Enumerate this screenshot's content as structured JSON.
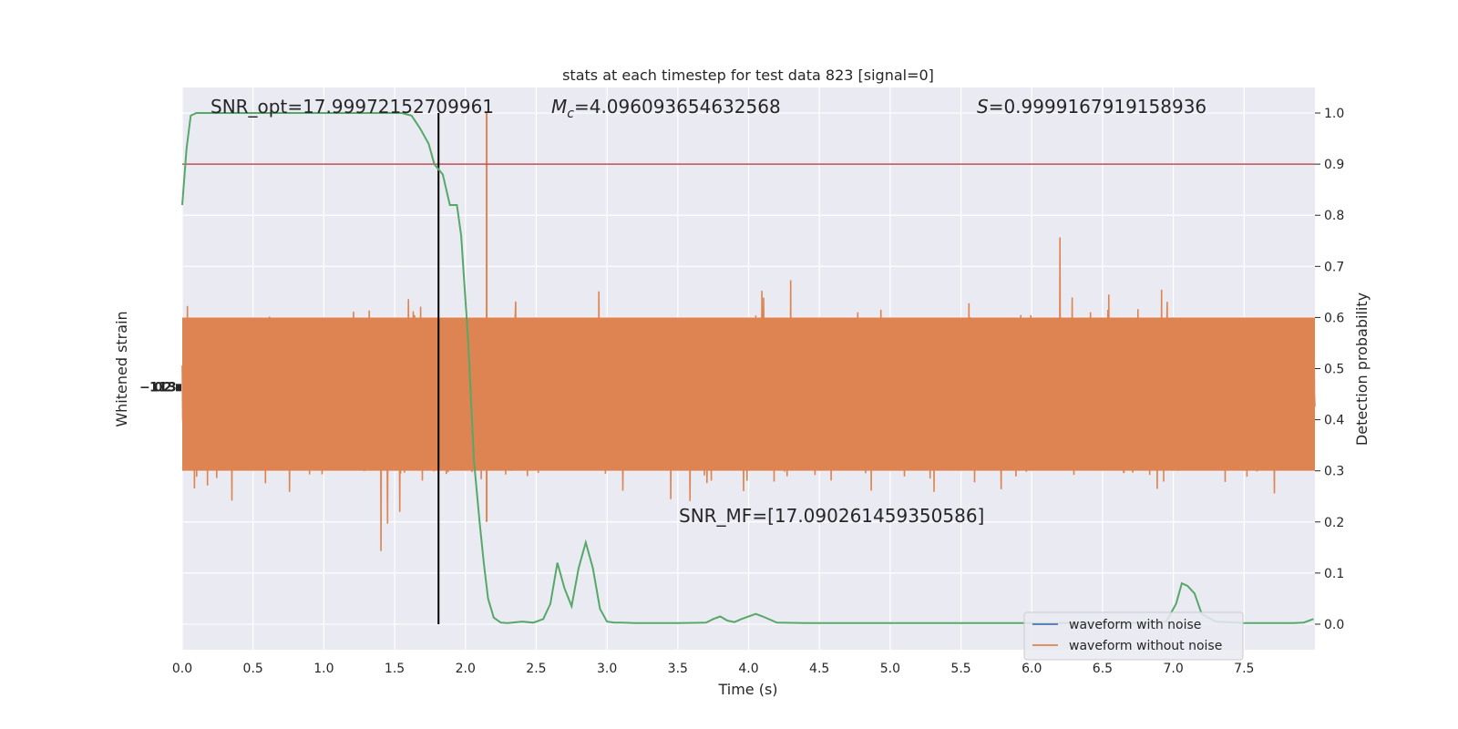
{
  "chart_data": {
    "type": "line",
    "title": "stats at each timestep for test data 823 [signal=0]",
    "xlabel": "Time (s)",
    "ylabel_left": "Whitened strain",
    "ylabel_right": "Detection probability",
    "xlim": [
      0.0,
      8.0
    ],
    "x_ticks": [
      "0.0",
      "0.5",
      "1.0",
      "1.5",
      "2.0",
      "2.5",
      "3.0",
      "3.5",
      "4.0",
      "4.5",
      "5.0",
      "5.5",
      "6.0",
      "6.5",
      "7.0",
      "7.5"
    ],
    "x_tick_values": [
      0.0,
      0.5,
      1.0,
      1.5,
      2.0,
      2.5,
      3.0,
      3.5,
      4.0,
      4.5,
      5.0,
      5.5,
      6.0,
      6.5,
      7.0,
      7.5
    ],
    "ylim_right": [
      -0.05,
      1.05
    ],
    "y_ticks_right": [
      "0.0",
      "0.1",
      "0.2",
      "0.3",
      "0.4",
      "0.5",
      "0.6",
      "0.7",
      "0.8",
      "0.9",
      "1.0"
    ],
    "y_tick_values_right": [
      0.0,
      0.1,
      0.2,
      0.3,
      0.4,
      0.5,
      0.6,
      0.7,
      0.8,
      0.9,
      1.0
    ],
    "grid": true,
    "legend_position": "lower-right",
    "annotations": {
      "snr_opt": "SNR_opt=17.99972152709961",
      "mc_symbol": "M",
      "mc_sub": "c",
      "mc_value": "=4.096093654632568",
      "s_symbol": "S",
      "s_value": "=0.9999167919158936",
      "snr_mf": "SNR_MF=[17.090261459350586]"
    },
    "threshold": 0.9,
    "event_time": 1.81,
    "series": [
      {
        "name": "waveform with noise",
        "color": "#4c72b0"
      },
      {
        "name": "waveform without noise",
        "color": "#dd8452"
      },
      {
        "color": "#55a868",
        "x": [
          0.0,
          0.03,
          0.06,
          0.1,
          0.2,
          0.4,
          0.6,
          0.8,
          1.0,
          1.2,
          1.4,
          1.55,
          1.62,
          1.68,
          1.74,
          1.78,
          1.81,
          1.84,
          1.89,
          1.94,
          1.97,
          2.02,
          2.06,
          2.1,
          2.13,
          2.16,
          2.2,
          2.25,
          2.3,
          2.4,
          2.48,
          2.55,
          2.6,
          2.65,
          2.7,
          2.75,
          2.8,
          2.85,
          2.9,
          2.95,
          3.0,
          3.05,
          3.1,
          3.2,
          3.3,
          3.4,
          3.5,
          3.7,
          3.75,
          3.8,
          3.85,
          3.9,
          3.95,
          4.05,
          4.1,
          4.2,
          4.4,
          4.6,
          4.8,
          5.0,
          5.2,
          5.4,
          5.6,
          5.8,
          6.0,
          6.2,
          6.4,
          6.6,
          6.8,
          6.95,
          7.02,
          7.06,
          7.1,
          7.15,
          7.2,
          7.3,
          7.5,
          7.7,
          7.85,
          7.92,
          7.99
        ],
        "y": [
          0.82,
          0.93,
          0.995,
          1.0,
          1.0,
          1.0,
          1.0,
          1.0,
          1.0,
          1.0,
          1.0,
          1.0,
          0.995,
          0.97,
          0.94,
          0.9,
          0.89,
          0.88,
          0.82,
          0.82,
          0.76,
          0.55,
          0.32,
          0.2,
          0.12,
          0.05,
          0.013,
          0.003,
          0.002,
          0.005,
          0.003,
          0.01,
          0.04,
          0.12,
          0.07,
          0.035,
          0.11,
          0.16,
          0.11,
          0.03,
          0.005,
          0.003,
          0.003,
          0.002,
          0.002,
          0.002,
          0.002,
          0.003,
          0.01,
          0.015,
          0.007,
          0.004,
          0.01,
          0.02,
          0.015,
          0.003,
          0.002,
          0.002,
          0.002,
          0.002,
          0.002,
          0.002,
          0.002,
          0.002,
          0.002,
          0.002,
          0.002,
          0.002,
          0.002,
          0.005,
          0.04,
          0.08,
          0.075,
          0.06,
          0.02,
          0.005,
          0.002,
          0.002,
          0.002,
          0.003,
          0.01
        ]
      }
    ],
    "left_axis_tick_glyphs": [
      "−",
      "1",
      "0",
      "1",
      "2",
      "3"
    ]
  }
}
